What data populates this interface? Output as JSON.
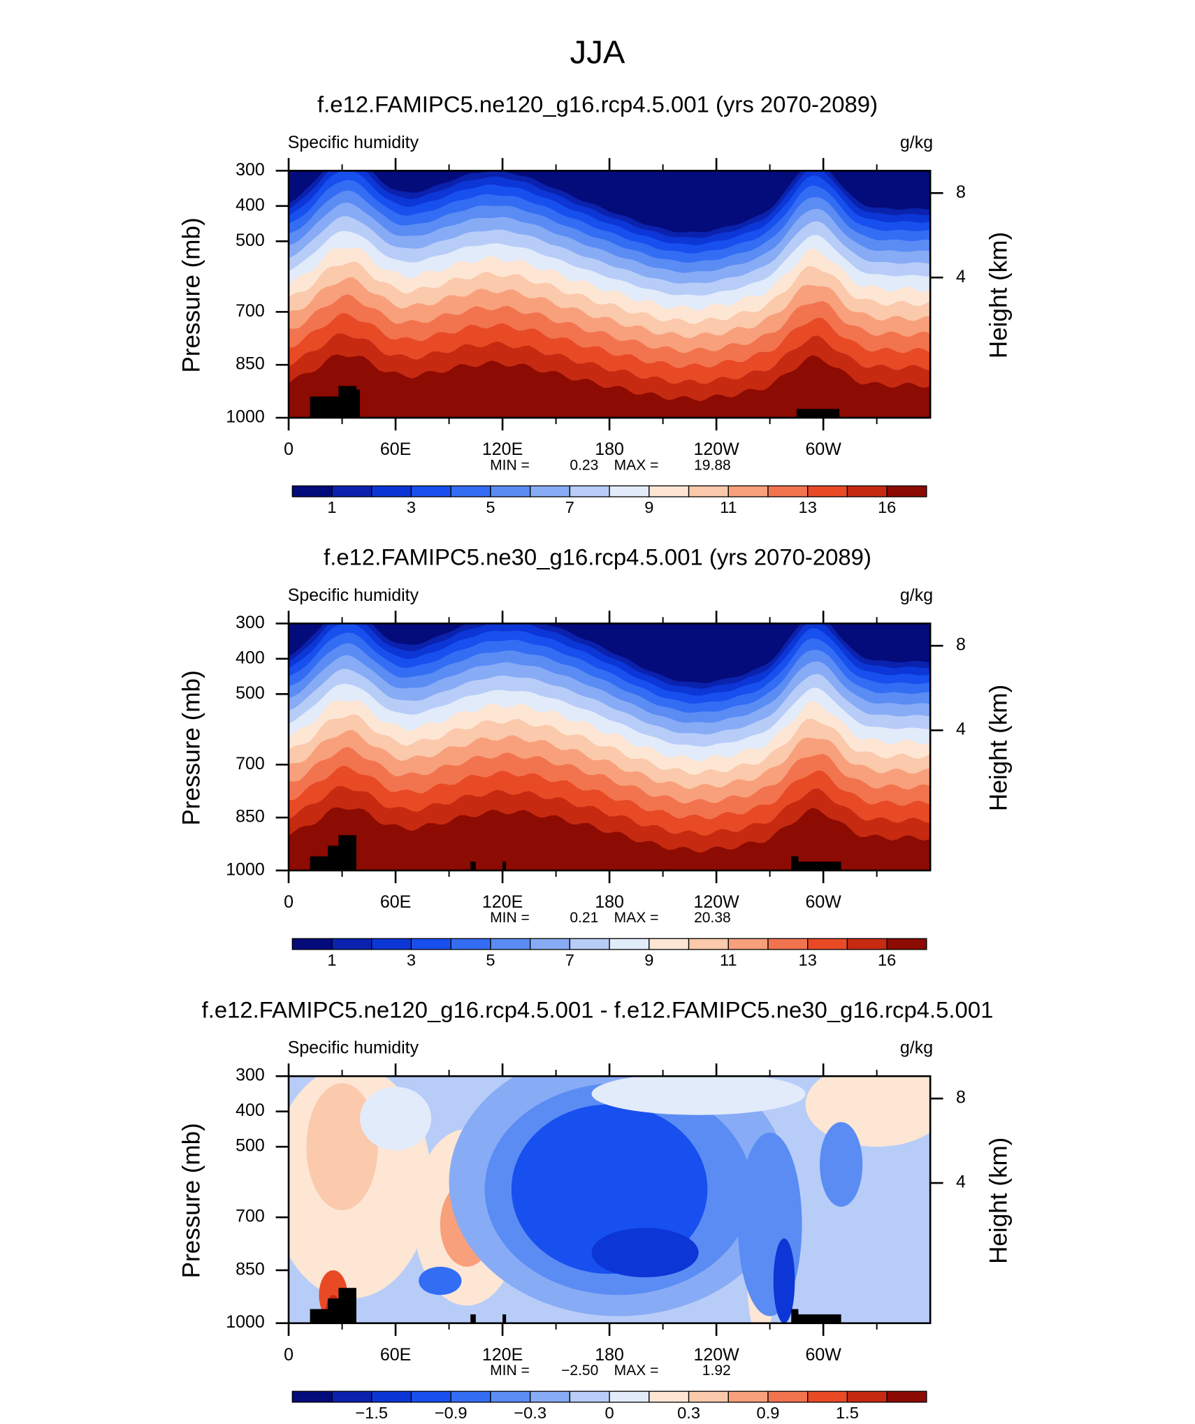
{
  "title": "JJA",
  "chart_data": [
    {
      "type": "contour",
      "title": "f.e12.FAMIPC5.ne120_g16.rcp4.5.001 (yrs 2070-2089)",
      "left_label": "Specific humidity",
      "right_label": "g/kg",
      "ylabel": "Pressure (mb)",
      "y2label": "Height (km)",
      "xlim": [
        0,
        360
      ],
      "xticks": [
        0,
        {
          "value": 60,
          "label": "60E"
        },
        {
          "value": 120,
          "label": "120E"
        },
        180,
        {
          "value": 240,
          "label": "120W"
        },
        {
          "value": 300,
          "label": "60W"
        }
      ],
      "xminorticks": [
        30,
        90,
        150,
        210,
        270,
        330
      ],
      "ylim": [
        1000,
        300
      ],
      "yticks": [
        300,
        400,
        500,
        700,
        850,
        1000
      ],
      "y2ticks": [
        8,
        4
      ],
      "min_label": "MIN =",
      "min": 0.23,
      "max_label": "MAX =",
      "max": 19.88,
      "colorbar": {
        "colors": [
          "#040b7a",
          "#0a22ad",
          "#0c36d6",
          "#1750ee",
          "#336df3",
          "#5a8cf4",
          "#88abf5",
          "#b7cdf8",
          "#e2ebfa",
          "#fde6d4",
          "#fbc9ab",
          "#f8a07c",
          "#f2744f",
          "#e84a26",
          "#c62a10",
          "#8c0b02"
        ],
        "labels": [
          1,
          3,
          5,
          7,
          9,
          11,
          13,
          16
        ]
      }
    },
    {
      "type": "contour",
      "title": "f.e12.FAMIPC5.ne30_g16.rcp4.5.001 (yrs 2070-2089)",
      "left_label": "Specific humidity",
      "right_label": "g/kg",
      "ylabel": "Pressure (mb)",
      "y2label": "Height (km)",
      "xlim": [
        0,
        360
      ],
      "xticks": [
        0,
        {
          "value": 60,
          "label": "60E"
        },
        {
          "value": 120,
          "label": "120E"
        },
        180,
        {
          "value": 240,
          "label": "120W"
        },
        {
          "value": 300,
          "label": "60W"
        }
      ],
      "xminorticks": [
        30,
        90,
        150,
        210,
        270,
        330
      ],
      "ylim": [
        1000,
        300
      ],
      "yticks": [
        300,
        400,
        500,
        700,
        850,
        1000
      ],
      "y2ticks": [
        8,
        4
      ],
      "min_label": "MIN =",
      "min": 0.21,
      "max_label": "MAX =",
      "max": 20.38,
      "colorbar": {
        "colors": [
          "#040b7a",
          "#0a22ad",
          "#0c36d6",
          "#1750ee",
          "#336df3",
          "#5a8cf4",
          "#88abf5",
          "#b7cdf8",
          "#e2ebfa",
          "#fde6d4",
          "#fbc9ab",
          "#f8a07c",
          "#f2744f",
          "#e84a26",
          "#c62a10",
          "#8c0b02"
        ],
        "labels": [
          1,
          3,
          5,
          7,
          9,
          11,
          13,
          16
        ]
      }
    },
    {
      "type": "contour",
      "title": "f.e12.FAMIPC5.ne120_g16.rcp4.5.001 - f.e12.FAMIPC5.ne30_g16.rcp4.5.001",
      "left_label": "Specific humidity",
      "right_label": "g/kg",
      "ylabel": "Pressure (mb)",
      "y2label": "Height (km)",
      "xlim": [
        0,
        360
      ],
      "xticks": [
        0,
        {
          "value": 60,
          "label": "60E"
        },
        {
          "value": 120,
          "label": "120E"
        },
        180,
        {
          "value": 240,
          "label": "120W"
        },
        {
          "value": 300,
          "label": "60W"
        }
      ],
      "xminorticks": [
        30,
        90,
        150,
        210,
        270,
        330
      ],
      "ylim": [
        1000,
        300
      ],
      "yticks": [
        300,
        400,
        500,
        700,
        850,
        1000
      ],
      "y2ticks": [
        8,
        4
      ],
      "min_label": "MIN =",
      "min": {
        "value": -2.5,
        "label": "−2.50"
      },
      "max_label": "MAX =",
      "max": 1.92,
      "colorbar": {
        "colors": [
          "#040b7a",
          "#0a22ad",
          "#0c36d6",
          "#1750ee",
          "#336df3",
          "#5a8cf4",
          "#88abf5",
          "#b7cdf8",
          "#e2ebfa",
          "#fde6d4",
          "#fbc9ab",
          "#f8a07c",
          "#f2744f",
          "#e84a26",
          "#c62a10",
          "#8c0b02"
        ],
        "labels": [
          {
            "value": -1.5,
            "label": "−1.5"
          },
          {
            "value": -0.9,
            "label": "−0.9"
          },
          {
            "value": -0.3,
            "label": "−0.3"
          },
          0,
          0.3,
          0.9,
          1.5
        ]
      }
    }
  ]
}
